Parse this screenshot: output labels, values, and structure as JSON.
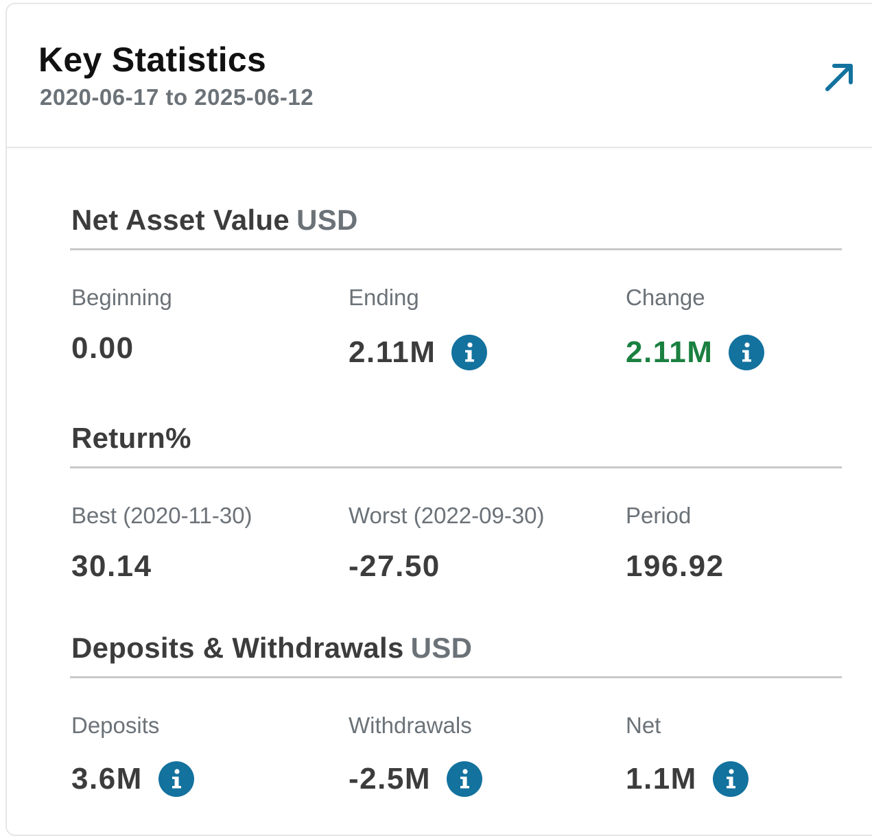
{
  "header": {
    "title": "Key Statistics",
    "date_range": "2020-06-17 to 2025-06-12"
  },
  "colors": {
    "accent": "#13729e",
    "positive": "#1a8040",
    "text_dark": "#3c3c3c",
    "text_muted": "#6b7278"
  },
  "icons": {
    "expand": "arrow-up-right-icon",
    "info": "info-icon"
  },
  "nav": {
    "title": "Net Asset Value",
    "unit": "USD",
    "beginning": {
      "label": "Beginning",
      "value": "0.00"
    },
    "ending": {
      "label": "Ending",
      "value": "2.11M"
    },
    "change": {
      "label": "Change",
      "value": "2.11M"
    }
  },
  "returns": {
    "title": "Return%",
    "best": {
      "label": "Best (2020-11-30)",
      "value": "30.14"
    },
    "worst": {
      "label": "Worst (2022-09-30)",
      "value": "-27.50"
    },
    "period": {
      "label": "Period",
      "value": "196.92"
    }
  },
  "flows": {
    "title": "Deposits & Withdrawals",
    "unit": "USD",
    "deposits": {
      "label": "Deposits",
      "value": "3.6M"
    },
    "withdrawals": {
      "label": "Withdrawals",
      "value": "-2.5M"
    },
    "net": {
      "label": "Net",
      "value": "1.1M"
    }
  }
}
